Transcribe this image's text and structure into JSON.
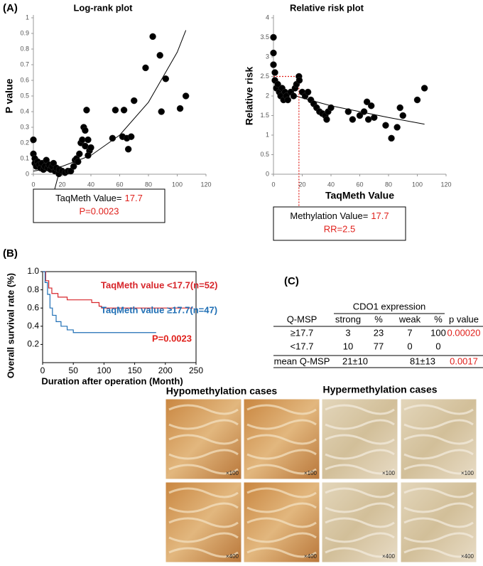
{
  "panels": [
    "(A)",
    "(B)",
    "(C)"
  ],
  "chart_data": [
    {
      "type": "scatter",
      "title": "Log-rank plot",
      "x_label": "TaqMeth Value",
      "y_label": "P value",
      "xlim": [
        0,
        120
      ],
      "ylim": [
        0,
        1
      ],
      "xticks": [
        0,
        20,
        40,
        60,
        80,
        100,
        120
      ],
      "yticks": [
        0,
        0.1,
        0.2,
        0.3,
        0.4,
        0.5,
        0.6,
        0.7,
        0.8,
        0.9,
        1
      ],
      "series": [
        {
          "color": "#000000",
          "x": [
            0,
            0,
            1,
            1,
            2,
            3,
            4,
            5,
            6,
            7,
            8,
            9,
            10,
            11,
            12,
            13,
            14,
            15,
            16,
            17.7,
            18,
            20,
            22,
            24,
            26,
            28,
            29,
            30,
            31,
            32,
            33,
            34,
            35,
            36,
            37,
            36,
            38,
            39,
            40,
            38,
            55,
            57,
            62,
            63,
            65,
            66,
            68,
            70,
            78,
            83,
            88,
            89,
            92,
            102,
            106
          ],
          "values": [
            0.22,
            0.13,
            0.1,
            0.07,
            0.05,
            0.08,
            0.06,
            0.04,
            0.07,
            0.03,
            0.05,
            0.09,
            0.04,
            0.06,
            0.03,
            0.05,
            0.07,
            0.02,
            0.04,
            0.0023,
            0.03,
            0.02,
            0.01,
            0.02,
            0.02,
            0.05,
            0.09,
            0.1,
            0.08,
            0.13,
            0.2,
            0.22,
            0.3,
            0.28,
            0.41,
            0.18,
            0.22,
            0.15,
            0.17,
            0.12,
            0.23,
            0.41,
            0.24,
            0.41,
            0.23,
            0.16,
            0.24,
            0.47,
            0.68,
            0.88,
            0.76,
            0.4,
            0.61,
            0.42,
            0.5
          ]
        }
      ],
      "trendline": {
        "x": [
          0,
          20,
          40,
          60,
          80,
          100,
          106
        ],
        "values": [
          0.02,
          0.05,
          0.12,
          0.25,
          0.46,
          0.78,
          0.92
        ]
      },
      "annotation": {
        "prefix": "TaqMeth Value=",
        "value": "17.7",
        "line2": "P=0.0023"
      }
    },
    {
      "type": "scatter",
      "title": "Relative risk plot",
      "x_label": "TaqMeth Value",
      "y_label": "Relative risk",
      "xlim": [
        0,
        120
      ],
      "ylim": [
        0,
        4
      ],
      "xticks": [
        0,
        20,
        40,
        60,
        80,
        100,
        120
      ],
      "yticks": [
        0,
        0.5,
        1,
        1.5,
        2,
        2.5,
        3,
        3.5,
        4
      ],
      "series": [
        {
          "color": "#000000",
          "x": [
            0,
            0,
            0,
            1,
            1,
            2,
            3,
            4,
            5,
            6,
            7,
            8,
            9,
            10,
            12,
            14,
            15,
            16,
            17.7,
            18,
            20,
            22,
            24,
            26,
            28,
            30,
            32,
            34,
            36,
            37,
            38,
            40,
            52,
            55,
            60,
            63,
            65,
            66,
            68,
            70,
            78,
            82,
            86,
            88,
            90,
            100,
            105
          ],
          "values": [
            3.5,
            3.1,
            2.8,
            2.6,
            2.4,
            2.2,
            2.3,
            2.1,
            2.0,
            2.2,
            1.9,
            2.1,
            2.0,
            1.9,
            2.1,
            2.0,
            2.2,
            2.3,
            2.5,
            2.4,
            2.1,
            2.0,
            2.1,
            1.9,
            1.8,
            1.7,
            1.6,
            1.55,
            1.5,
            1.4,
            1.6,
            1.7,
            1.6,
            1.4,
            1.5,
            1.6,
            1.85,
            1.4,
            1.75,
            1.45,
            1.25,
            0.92,
            1.2,
            1.7,
            1.5,
            1.9,
            2.2
          ]
        }
      ],
      "trendline": {
        "x": [
          0,
          20,
          40,
          60,
          80,
          105
        ],
        "values": [
          2.2,
          1.95,
          1.75,
          1.6,
          1.45,
          1.28
        ]
      },
      "reference": {
        "x": 17.7,
        "y": 2.5,
        "color": "#e0201b"
      },
      "annotation": {
        "prefix": "Methylation Value=",
        "value": "17.7",
        "line2": "RR=2.5"
      }
    },
    {
      "type": "line",
      "x_label": "Duration after operation (Month)",
      "y_label": "Overall survival rate (%)",
      "xlim": [
        0,
        250
      ],
      "ylim": [
        0,
        1
      ],
      "xticks": [
        0,
        50,
        100,
        150,
        200,
        250
      ],
      "yticks": [
        0.2,
        0.4,
        0.6,
        0.8,
        {
          "value": 1,
          "label": "1.0"
        }
      ],
      "series": [
        {
          "name": "TaqMeth value <17.7(n=52)",
          "color": "#d7262b",
          "x": [
            0,
            5,
            5,
            10,
            10,
            15,
            15,
            25,
            25,
            40,
            40,
            80,
            80,
            92,
            92,
            96,
            96,
            245
          ],
          "values": [
            1,
            1,
            0.9,
            0.9,
            0.82,
            0.82,
            0.76,
            0.76,
            0.72,
            0.72,
            0.69,
            0.69,
            0.66,
            0.66,
            0.62,
            0.62,
            0.6,
            0.6
          ]
        },
        {
          "name": "TaqMeth value ≥17.7(n=47)",
          "color": "#1f6fb5",
          "x": [
            0,
            4,
            4,
            8,
            8,
            12,
            12,
            16,
            16,
            22,
            22,
            30,
            30,
            40,
            40,
            50,
            50,
            185
          ],
          "values": [
            1,
            1,
            0.88,
            0.88,
            0.75,
            0.75,
            0.6,
            0.6,
            0.52,
            0.52,
            0.45,
            0.45,
            0.4,
            0.4,
            0.36,
            0.36,
            0.33,
            0.33
          ]
        }
      ],
      "annotation": "P=0.0023"
    }
  ],
  "table": {
    "group_header": "CDO1 expression",
    "header": [
      "Q-MSP",
      "strong",
      "%",
      "weak",
      "%",
      "p value"
    ],
    "rows": [
      [
        "≥17.7",
        "3",
        "23",
        "7",
        "100",
        "0.00020"
      ],
      [
        "<17.7",
        "10",
        "77",
        "0",
        "0",
        null
      ],
      [
        "mean Q-MSP",
        "21±10",
        null,
        "81±13",
        null,
        "0.0017"
      ]
    ]
  },
  "images": {
    "groups": [
      "Hypomethylation cases",
      "Hypermethylation cases"
    ],
    "magnifications": [
      "×100",
      "×400"
    ]
  }
}
